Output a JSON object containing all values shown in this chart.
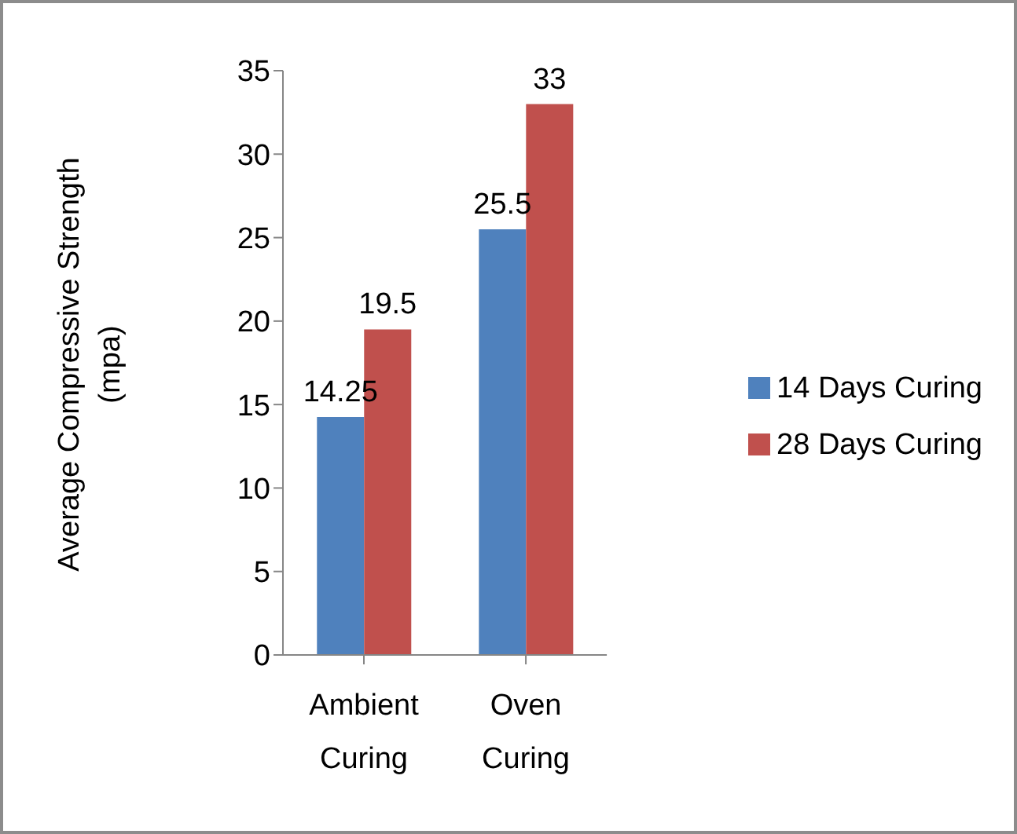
{
  "chart_data": {
    "type": "bar",
    "ylabel": "Average Compressive Strength (mpa)",
    "categories": [
      "Ambient Curing",
      "Oven Curing"
    ],
    "series": [
      {
        "name": "14 Days Curing",
        "color": "#4f81bd",
        "values": [
          14.25,
          25.5
        ]
      },
      {
        "name": "28 Days Curing",
        "color": "#c0504d",
        "values": [
          19.5,
          33
        ]
      }
    ],
    "ylim": [
      0,
      35
    ],
    "yticks": [
      0,
      5,
      10,
      15,
      20,
      25,
      30,
      35
    ],
    "grid": false,
    "legend": "right",
    "data_labels": true
  }
}
